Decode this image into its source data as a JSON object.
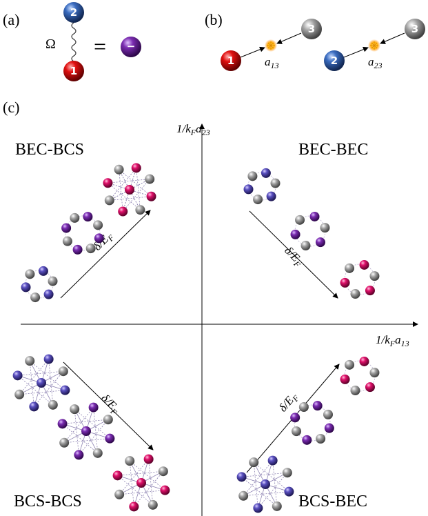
{
  "panel_a": {
    "label": "(a)",
    "omega": "Ω",
    "top_state": "2",
    "bottom_state": "1",
    "equals": "=",
    "dressed_state": "−"
  },
  "panel_b": {
    "label": "(b)",
    "pairs": [
      {
        "left": "1",
        "right": "3",
        "scattering": {
          "base": "a",
          "sub": "13"
        }
      },
      {
        "left": "2",
        "right": "3",
        "scattering": {
          "base": "a",
          "sub": "23"
        }
      }
    ]
  },
  "panel_c": {
    "label": "(c)",
    "y_axis": {
      "lead": "1/k",
      "lead_sub": "F",
      "base": "a",
      "sub": "23"
    },
    "x_axis": {
      "lead": "1/k",
      "lead_sub": "F",
      "base": "a",
      "sub": "13"
    },
    "quadrants": [
      {
        "name": "BEC-BCS",
        "arrow_label": {
          "base": "δ/E",
          "sub": "F"
        }
      },
      {
        "name": "BEC-BEC",
        "arrow_label": {
          "base": "δ/E",
          "sub": "F"
        }
      },
      {
        "name": "BCS-BCS",
        "arrow_label": {
          "base": "δ/E",
          "sub": "F"
        }
      },
      {
        "name": "BCS-BEC",
        "arrow_label": {
          "base": "δ/E",
          "sub": "F"
        }
      }
    ]
  }
}
